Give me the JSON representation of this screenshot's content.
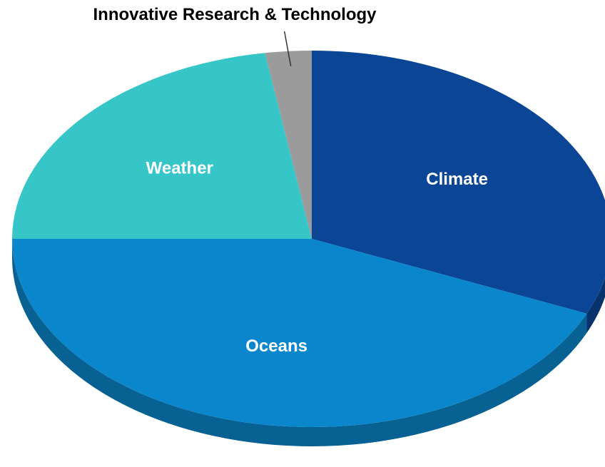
{
  "chart_data": {
    "type": "pie",
    "style": "3d-tilted",
    "categories": [
      "Climate",
      "Oceans",
      "Weather",
      "Innovative Research & Technology"
    ],
    "values": [
      31.5,
      43.5,
      22.5,
      2.5
    ],
    "unit": "percent (estimated)",
    "colors": {
      "Climate": "#0a4596",
      "Oceans": "#0a87cc",
      "Weather": "#36c6c8",
      "Innovative Research & Technology": "#9b9b9b"
    },
    "label_colors": {
      "Climate": "#ffffff",
      "Oceans": "#ffffff",
      "Weather": "#ffffff",
      "Innovative Research & Technology": "#000000"
    },
    "labels_inside": [
      "Climate",
      "Oceans",
      "Weather"
    ],
    "labels_outside_with_leader": [
      "Innovative Research & Technology"
    ],
    "legend": false
  }
}
